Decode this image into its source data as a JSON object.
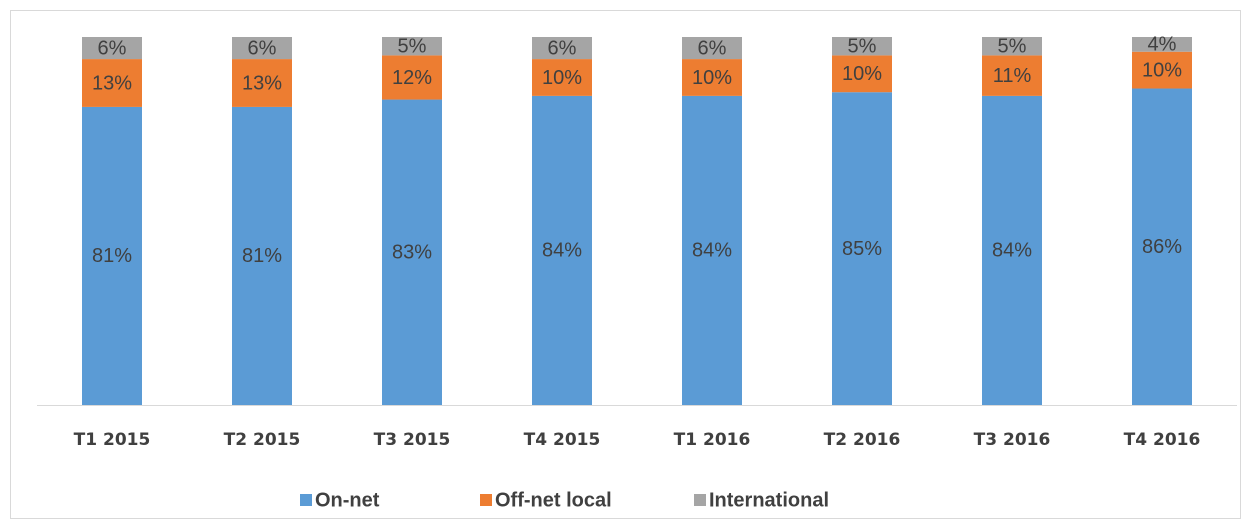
{
  "chart_data": {
    "type": "stacked_bar",
    "categories": [
      "T1 2015",
      "T2 2015",
      "T3 2015",
      "T4 2015",
      "T1 2016",
      "T2 2016",
      "T3 2016",
      "T4 2016"
    ],
    "series": [
      {
        "name": "On-net",
        "color": "#5b9bd5",
        "values": [
          81,
          81,
          83,
          84,
          84,
          85,
          84,
          86
        ],
        "value_labels": [
          "81%",
          "81%",
          "83%",
          "84%",
          "84%",
          "85%",
          "84%",
          "86%"
        ]
      },
      {
        "name": "Off-net local",
        "color": "#ed7d31",
        "values": [
          13,
          13,
          12,
          10,
          10,
          10,
          11,
          10
        ],
        "value_labels": [
          "13%",
          "13%",
          "12%",
          "10%",
          "10%",
          "10%",
          "11%",
          "10%"
        ]
      },
      {
        "name": "International",
        "color": "#a5a5a5",
        "values": [
          6,
          6,
          5,
          6,
          6,
          5,
          5,
          4
        ],
        "value_labels": [
          "6%",
          "6%",
          "5%",
          "6%",
          "6%",
          "5%",
          "5%",
          "4%"
        ]
      }
    ],
    "ylim": [
      0,
      100
    ],
    "legend": "bottom"
  }
}
